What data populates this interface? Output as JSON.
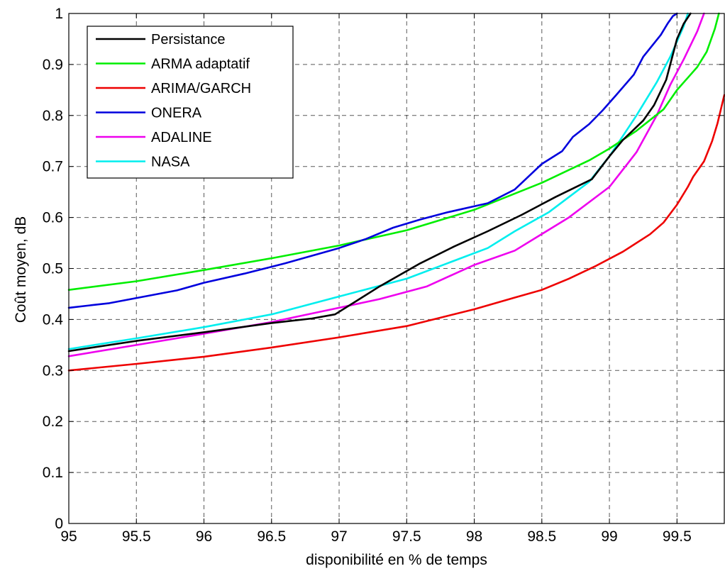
{
  "chart_data": {
    "type": "line",
    "xlabel": "disponibilité en % de temps",
    "ylabel": "Coût moyen, dB",
    "xlim": [
      95,
      99.85
    ],
    "ylim": [
      0,
      1
    ],
    "grid": true,
    "legend_position": "top-left",
    "xticks": [
      "95",
      "95.5",
      "96",
      "96.5",
      "97",
      "97.5",
      "98",
      "98.5",
      "99",
      "99.5"
    ],
    "yticks": [
      "0",
      "0.1",
      "0.2",
      "0.3",
      "0.4",
      "0.5",
      "0.6",
      "0.7",
      "0.8",
      "0.9",
      "1"
    ],
    "series": [
      {
        "name": "Persistance",
        "color": "#000000",
        "x": [
          95,
          95.5,
          96,
          96.5,
          96.8,
          96.97,
          97.3,
          97.6,
          97.85,
          98.1,
          98.35,
          98.6,
          98.87,
          99.0,
          99.1,
          99.25,
          99.33,
          99.42,
          99.5,
          99.55,
          99.6
        ],
        "y": [
          0.338,
          0.358,
          0.375,
          0.393,
          0.402,
          0.41,
          0.465,
          0.51,
          0.543,
          0.573,
          0.605,
          0.64,
          0.675,
          0.72,
          0.752,
          0.79,
          0.82,
          0.87,
          0.95,
          0.98,
          1.0
        ]
      },
      {
        "name": "ARMA adaptatif",
        "color": "#00ee00",
        "x": [
          95,
          95.5,
          96,
          96.5,
          97,
          97.5,
          98,
          98.5,
          98.85,
          99.0,
          99.2,
          99.4,
          99.5,
          99.6,
          99.65,
          99.72,
          99.78,
          99.81
        ],
        "y": [
          0.458,
          0.475,
          0.497,
          0.52,
          0.545,
          0.575,
          0.615,
          0.668,
          0.712,
          0.735,
          0.77,
          0.812,
          0.85,
          0.88,
          0.895,
          0.925,
          0.97,
          1.0
        ]
      },
      {
        "name": "ARIMA/GARCH",
        "color": "#ee0000",
        "x": [
          95,
          95.5,
          96,
          96.5,
          97,
          97.5,
          98,
          98.3,
          98.5,
          98.7,
          98.9,
          99.1,
          99.3,
          99.4,
          99.5,
          99.58,
          99.62,
          99.7,
          99.76,
          99.8,
          99.85
        ],
        "y": [
          0.3,
          0.313,
          0.327,
          0.345,
          0.365,
          0.387,
          0.42,
          0.443,
          0.458,
          0.48,
          0.505,
          0.533,
          0.567,
          0.59,
          0.625,
          0.66,
          0.68,
          0.71,
          0.75,
          0.785,
          0.84
        ]
      },
      {
        "name": "ONERA",
        "color": "#0000dd",
        "x": [
          95,
          95.3,
          95.8,
          96,
          96.3,
          96.6,
          97,
          97.2,
          97.4,
          97.6,
          97.8,
          98.1,
          98.3,
          98.5,
          98.65,
          98.73,
          98.85,
          98.95,
          99.05,
          99.18,
          99.25,
          99.38,
          99.43,
          99.47,
          99.5
        ],
        "y": [
          0.423,
          0.432,
          0.457,
          0.472,
          0.49,
          0.51,
          0.54,
          0.558,
          0.58,
          0.596,
          0.61,
          0.628,
          0.655,
          0.705,
          0.73,
          0.758,
          0.783,
          0.81,
          0.84,
          0.88,
          0.915,
          0.958,
          0.98,
          0.995,
          1.0
        ]
      },
      {
        "name": "ADALINE",
        "color": "#ee00ee",
        "x": [
          95,
          95.5,
          96,
          96.5,
          97,
          97.3,
          97.65,
          98,
          98.3,
          98.7,
          99.0,
          99.2,
          99.35,
          99.45,
          99.55,
          99.65,
          99.7
        ],
        "y": [
          0.328,
          0.35,
          0.372,
          0.395,
          0.423,
          0.44,
          0.465,
          0.507,
          0.535,
          0.6,
          0.66,
          0.728,
          0.8,
          0.86,
          0.91,
          0.965,
          1.0
        ]
      },
      {
        "name": "NASA",
        "color": "#00eeee",
        "x": [
          95,
          95.5,
          96,
          96.5,
          97,
          97.5,
          97.8,
          98.1,
          98.3,
          98.55,
          98.85,
          99.0,
          99.2,
          99.35,
          99.45,
          99.55,
          99.58
        ],
        "y": [
          0.342,
          0.363,
          0.385,
          0.41,
          0.445,
          0.48,
          0.51,
          0.54,
          0.573,
          0.61,
          0.67,
          0.72,
          0.8,
          0.865,
          0.915,
          0.975,
          1.0
        ]
      }
    ]
  }
}
